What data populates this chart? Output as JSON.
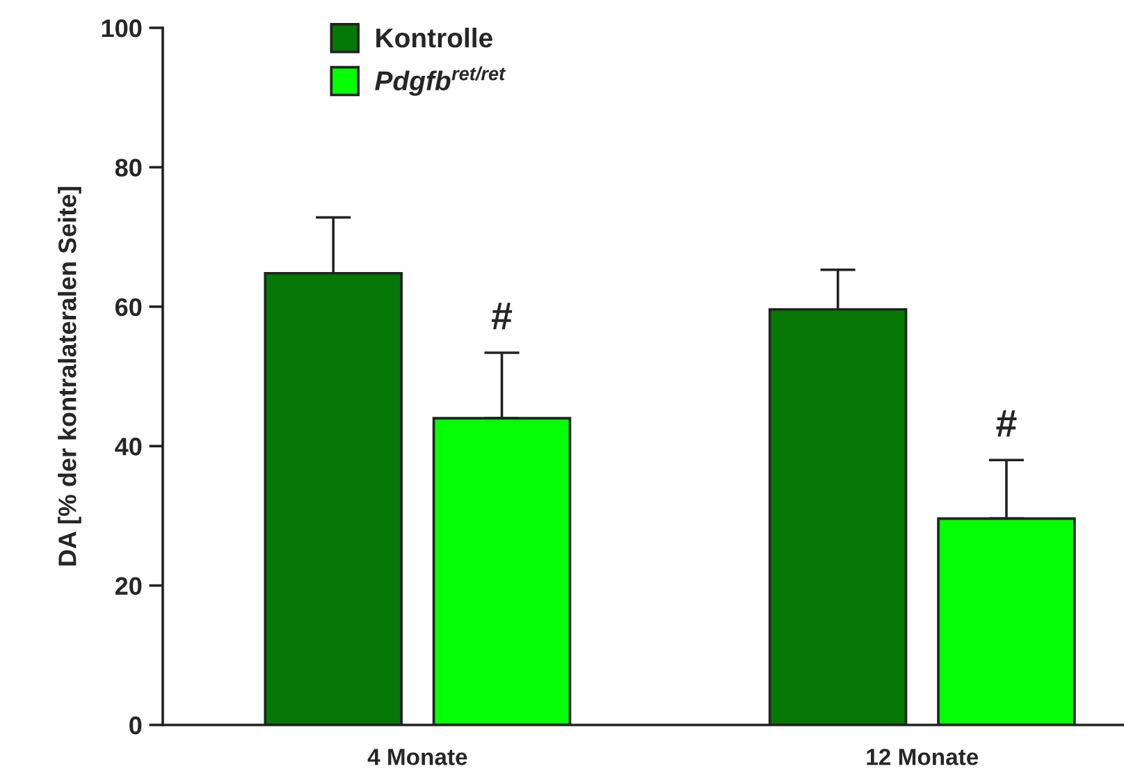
{
  "chart_data": {
    "type": "bar",
    "ylabel": "DA [% der kontralateralen Seite]",
    "categories": [
      "4 Monate",
      "12 Monate"
    ],
    "series": [
      {
        "name": "Kontrolle",
        "color": "#057705",
        "values": [
          64.8,
          59.6
        ],
        "errors": [
          [
            64.8,
            72.8
          ],
          [
            59.6,
            65.3
          ]
        ]
      },
      {
        "name": "Pdgfb$^{ret/ret}$",
        "color": "#05ff05",
        "values": [
          44,
          29.6
        ],
        "errors": [
          [
            44,
            53.4
          ],
          [
            29.6,
            38
          ]
        ]
      }
    ],
    "annotations": [
      "#",
      "#"
    ],
    "ylim": [
      0,
      100
    ],
    "yticks": [
      0,
      20,
      40,
      60,
      80,
      100
    ],
    "grid": false,
    "legend": "top left"
  }
}
